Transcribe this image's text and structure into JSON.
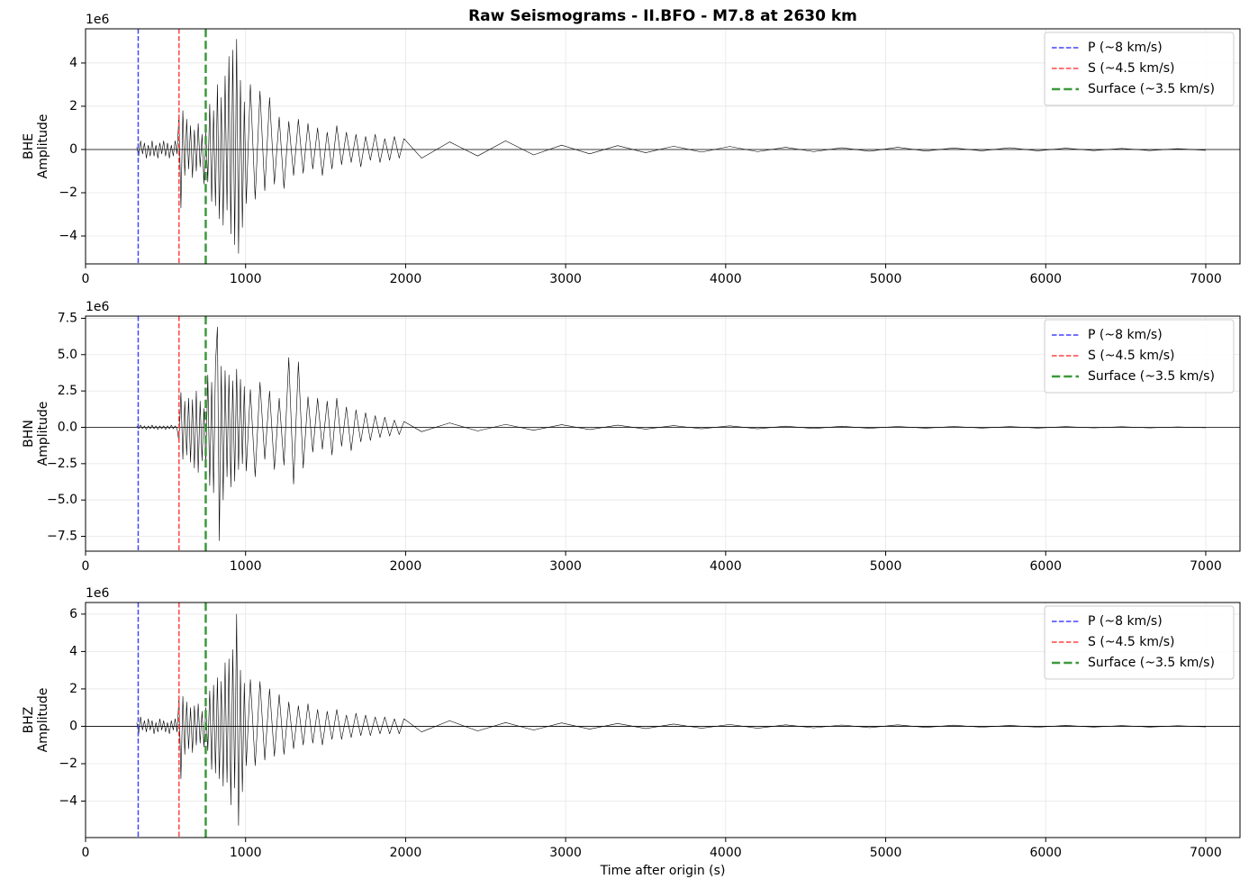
{
  "chart_data": [
    {
      "type": "line",
      "title": "Raw Seismograms - II.BFO - M7.8 at 2630 km",
      "ylabel": [
        "BHE",
        "Amplitude"
      ],
      "offset_label": "1e6",
      "xlim": [
        0,
        7214
      ],
      "xticks": [
        0,
        1000,
        2000,
        3000,
        4000,
        5000,
        6000,
        7000
      ],
      "ylim": [
        -5.29,
        5.58
      ],
      "yticks": [
        {
          "value": -4,
          "label": "−4"
        },
        {
          "value": -2,
          "label": "−2"
        },
        0,
        2,
        4
      ],
      "grid": true,
      "hline": 0,
      "legend": "upper right",
      "vlines": [
        {
          "name": "P (~8 km/s)",
          "color": "#4444ff",
          "x": 329,
          "linewidth": 1.5,
          "linestyle": "dashed"
        },
        {
          "name": "S (~4.5 km/s)",
          "color": "#ff4444",
          "x": 584,
          "linewidth": 1.5,
          "linestyle": "dashed"
        },
        {
          "name": "Surface (~3.5 km/s)",
          "color": "#3c9a3c",
          "x": 751,
          "linewidth": 2.5,
          "linestyle": "dashed"
        }
      ],
      "series": [
        {
          "color": "#000000",
          "x": [
            320,
            332,
            344,
            356,
            368,
            380,
            392,
            404,
            416,
            428,
            440,
            452,
            464,
            476,
            488,
            500,
            512,
            524,
            536,
            548,
            560,
            572,
            584,
            596,
            608,
            620,
            632,
            644,
            656,
            668,
            680,
            692,
            704,
            716,
            728,
            740,
            752,
            764,
            776,
            788,
            800,
            812,
            824,
            836,
            848,
            860,
            872,
            884,
            896,
            908,
            920,
            932,
            944,
            956,
            968,
            980,
            992,
            1004,
            1030,
            1060,
            1090,
            1120,
            1150,
            1180,
            1210,
            1240,
            1270,
            1300,
            1330,
            1360,
            1390,
            1420,
            1450,
            1480,
            1510,
            1540,
            1570,
            1600,
            1630,
            1660,
            1690,
            1720,
            1750,
            1780,
            1810,
            1840,
            1870,
            1900,
            1930,
            1960,
            1990,
            2100,
            2275,
            2450,
            2625,
            2800,
            2975,
            3150,
            3325,
            3500,
            3675,
            3850,
            4025,
            4200,
            4375,
            4550,
            4725,
            4900,
            5075,
            5250,
            5425,
            5600,
            5775,
            5950,
            6125,
            6300,
            6475,
            6650,
            6825,
            7000
          ],
          "values": [
            0.1,
            -0.3,
            0.4,
            -0.2,
            0.3,
            -0.4,
            0.2,
            -0.3,
            0.4,
            -0.3,
            0.2,
            -0.4,
            0.3,
            -0.2,
            0.4,
            -0.3,
            0.3,
            -0.4,
            0.2,
            -0.3,
            0.4,
            -0.2,
            1.6,
            -2.7,
            1.8,
            -1.2,
            1.4,
            -0.9,
            1.1,
            -1.3,
            0.9,
            -1.0,
            1.2,
            -0.8,
            0.7,
            -1.6,
            0.8,
            -1.5,
            2.1,
            -2.4,
            1.8,
            -2.6,
            3.0,
            -3.2,
            2.4,
            -3.5,
            3.4,
            -2.8,
            4.3,
            -3.9,
            4.6,
            -4.4,
            5.1,
            -4.8,
            3.2,
            -3.6,
            2.2,
            -2.5,
            3.0,
            -2.3,
            2.7,
            -1.9,
            2.4,
            -1.6,
            1.5,
            -1.8,
            1.3,
            -1.2,
            1.4,
            -1.1,
            1.2,
            -0.9,
            1.0,
            -1.2,
            0.8,
            -0.9,
            1.1,
            -0.7,
            0.8,
            -0.6,
            0.7,
            -0.8,
            0.6,
            -0.5,
            0.7,
            -0.6,
            0.5,
            -0.5,
            0.6,
            -0.4,
            0.5,
            -0.4,
            0.35,
            -0.3,
            0.4,
            -0.25,
            0.2,
            -0.2,
            0.18,
            -0.15,
            0.15,
            -0.12,
            0.14,
            -0.1,
            0.1,
            -0.1,
            0.08,
            -0.08,
            0.1,
            -0.07,
            0.07,
            -0.06,
            0.08,
            -0.06,
            0.06,
            -0.05,
            0.05,
            -0.05,
            0.04,
            -0.04
          ]
        }
      ]
    },
    {
      "type": "line",
      "ylabel": [
        "BHN",
        "Amplitude"
      ],
      "offset_label": "1e6",
      "xlim": [
        0,
        7214
      ],
      "xticks": [
        0,
        1000,
        2000,
        3000,
        4000,
        5000,
        6000,
        7000
      ],
      "ylim": [
        -8.52,
        7.65
      ],
      "yticks": [
        {
          "value": -7.5,
          "label": "−7.5"
        },
        {
          "value": -5,
          "label": "−5.0"
        },
        {
          "value": -2.5,
          "label": "−2.5"
        },
        {
          "value": 0,
          "label": "0.0"
        },
        2.5,
        {
          "value": 5,
          "label": "5.0"
        },
        7.5
      ],
      "grid": true,
      "hline": 0,
      "legend": "upper right",
      "vlines": [
        {
          "name": "P (~8 km/s)",
          "color": "#4444ff",
          "x": 329,
          "linewidth": 1.5,
          "linestyle": "dashed"
        },
        {
          "name": "S (~4.5 km/s)",
          "color": "#ff4444",
          "x": 584,
          "linewidth": 1.5,
          "linestyle": "dashed"
        },
        {
          "name": "Surface (~3.5 km/s)",
          "color": "#3c9a3c",
          "x": 751,
          "linewidth": 2.5,
          "linestyle": "dashed"
        }
      ],
      "series": [
        {
          "color": "#000000",
          "x": [
            320,
            332,
            344,
            356,
            368,
            380,
            392,
            404,
            416,
            428,
            440,
            452,
            464,
            476,
            488,
            500,
            512,
            524,
            536,
            548,
            560,
            572,
            584,
            596,
            608,
            620,
            632,
            644,
            656,
            668,
            680,
            692,
            704,
            716,
            728,
            740,
            752,
            764,
            776,
            788,
            800,
            812,
            824,
            836,
            848,
            860,
            872,
            884,
            896,
            908,
            920,
            932,
            944,
            956,
            968,
            980,
            992,
            1004,
            1030,
            1060,
            1090,
            1120,
            1150,
            1180,
            1210,
            1240,
            1270,
            1300,
            1330,
            1360,
            1390,
            1420,
            1450,
            1480,
            1510,
            1540,
            1570,
            1600,
            1630,
            1660,
            1690,
            1720,
            1750,
            1780,
            1810,
            1840,
            1870,
            1900,
            1930,
            1960,
            1990,
            2100,
            2275,
            2450,
            2625,
            2800,
            2975,
            3150,
            3325,
            3500,
            3675,
            3850,
            4025,
            4200,
            4375,
            4550,
            4725,
            4900,
            5075,
            5250,
            5425,
            5600,
            5775,
            5950,
            6125,
            6300,
            6475,
            6650,
            6825,
            7000
          ],
          "values": [
            0.1,
            -0.1,
            0.15,
            -0.1,
            0.1,
            -0.15,
            0.1,
            -0.1,
            0.15,
            -0.1,
            0.1,
            -0.15,
            0.1,
            -0.1,
            0.1,
            -0.15,
            0.1,
            -0.1,
            0.15,
            -0.1,
            0.1,
            -0.1,
            -1.0,
            2.4,
            -2.2,
            1.8,
            -1.9,
            2.0,
            -2.4,
            1.9,
            -2.8,
            2.5,
            -3.1,
            1.8,
            -2.3,
            1.3,
            -2.4,
            3.6,
            -4.0,
            3.1,
            -4.5,
            4.4,
            6.9,
            -7.8,
            4.2,
            -5.0,
            3.9,
            -3.4,
            3.6,
            -4.1,
            3.2,
            -3.7,
            4.0,
            -2.9,
            3.3,
            -2.5,
            2.8,
            -3.0,
            2.6,
            -3.4,
            3.1,
            -2.2,
            2.5,
            -2.9,
            2.0,
            -2.6,
            4.8,
            -3.9,
            4.5,
            -2.8,
            2.1,
            -1.7,
            2.0,
            -1.5,
            1.8,
            -1.9,
            2.0,
            -1.3,
            1.4,
            -1.6,
            1.2,
            -1.0,
            1.0,
            -0.9,
            0.8,
            -0.7,
            0.7,
            -0.6,
            0.5,
            -0.5,
            0.4,
            -0.3,
            0.3,
            -0.25,
            0.2,
            -0.2,
            0.18,
            -0.15,
            0.15,
            -0.12,
            0.12,
            -0.1,
            0.1,
            -0.1,
            0.08,
            -0.08,
            0.07,
            -0.07,
            0.06,
            -0.06,
            0.06,
            -0.05,
            0.05,
            -0.05,
            0.05,
            -0.04,
            0.04,
            -0.04,
            0.03,
            -0.03
          ]
        }
      ]
    },
    {
      "type": "line",
      "ylabel": [
        "BHZ",
        "Amplitude"
      ],
      "offset_label": "1e6",
      "xlabel": "Time after origin (s)",
      "xlim": [
        0,
        7214
      ],
      "xticks": [
        0,
        1000,
        2000,
        3000,
        4000,
        5000,
        6000,
        7000
      ],
      "ylim": [
        -5.95,
        6.62
      ],
      "yticks": [
        {
          "value": -4,
          "label": "−4"
        },
        {
          "value": -2,
          "label": "−2"
        },
        0,
        2,
        4,
        6
      ],
      "grid": true,
      "hline": 0,
      "legend": "upper right",
      "vlines": [
        {
          "name": "P (~8 km/s)",
          "color": "#4444ff",
          "x": 329,
          "linewidth": 1.5,
          "linestyle": "dashed"
        },
        {
          "name": "S (~4.5 km/s)",
          "color": "#ff4444",
          "x": 584,
          "linewidth": 1.5,
          "linestyle": "dashed"
        },
        {
          "name": "Surface (~3.5 km/s)",
          "color": "#3c9a3c",
          "x": 751,
          "linewidth": 2.5,
          "linestyle": "dashed"
        }
      ],
      "series": [
        {
          "color": "#000000",
          "x": [
            320,
            332,
            344,
            356,
            368,
            380,
            392,
            404,
            416,
            428,
            440,
            452,
            464,
            476,
            488,
            500,
            512,
            524,
            536,
            548,
            560,
            572,
            584,
            596,
            608,
            620,
            632,
            644,
            656,
            668,
            680,
            692,
            704,
            716,
            728,
            740,
            752,
            764,
            776,
            788,
            800,
            812,
            824,
            836,
            848,
            860,
            872,
            884,
            896,
            908,
            920,
            932,
            944,
            956,
            968,
            980,
            992,
            1004,
            1030,
            1060,
            1090,
            1120,
            1150,
            1180,
            1210,
            1240,
            1270,
            1300,
            1330,
            1360,
            1390,
            1420,
            1450,
            1480,
            1510,
            1540,
            1570,
            1600,
            1630,
            1660,
            1690,
            1720,
            1750,
            1780,
            1810,
            1840,
            1870,
            1900,
            1930,
            1960,
            1990,
            2100,
            2275,
            2450,
            2625,
            2800,
            2975,
            3150,
            3325,
            3500,
            3675,
            3850,
            4025,
            4200,
            4375,
            4550,
            4725,
            4900,
            5075,
            5250,
            5425,
            5600,
            5775,
            5950,
            6125,
            6300,
            6475,
            6650,
            6825,
            7000
          ],
          "values": [
            0.2,
            -0.4,
            0.5,
            -0.2,
            0.3,
            -0.3,
            0.4,
            -0.2,
            0.3,
            -0.4,
            0.2,
            -0.3,
            0.4,
            -0.2,
            0.3,
            -0.3,
            0.2,
            -0.4,
            0.3,
            -0.2,
            0.4,
            -0.3,
            1.5,
            -2.8,
            1.6,
            -1.5,
            1.3,
            -1.2,
            1.0,
            -1.4,
            1.1,
            -1.0,
            1.2,
            -0.9,
            0.8,
            -1.1,
            1.0,
            -1.3,
            1.9,
            -2.3,
            2.2,
            -2.5,
            2.6,
            -2.8,
            2.4,
            -3.2,
            3.4,
            -3.0,
            3.6,
            -4.2,
            4.1,
            -3.3,
            6.0,
            -5.3,
            3.0,
            -3.5,
            2.3,
            -2.1,
            2.5,
            -2.1,
            2.4,
            -1.8,
            2.0,
            -1.6,
            1.7,
            -1.5,
            1.3,
            -1.2,
            1.1,
            -1.0,
            1.2,
            -0.9,
            0.9,
            -1.0,
            0.8,
            -0.7,
            0.9,
            -0.7,
            0.6,
            -0.6,
            0.7,
            -0.5,
            0.6,
            -0.5,
            0.5,
            -0.4,
            0.5,
            -0.4,
            0.4,
            -0.4,
            0.4,
            -0.3,
            0.3,
            -0.25,
            0.2,
            -0.2,
            0.18,
            -0.15,
            0.15,
            -0.12,
            0.12,
            -0.1,
            0.1,
            -0.1,
            0.08,
            -0.08,
            0.07,
            -0.07,
            0.08,
            -0.06,
            0.06,
            -0.05,
            0.05,
            -0.05,
            0.05,
            -0.04,
            0.04,
            -0.04,
            0.03,
            -0.03
          ]
        }
      ]
    }
  ]
}
